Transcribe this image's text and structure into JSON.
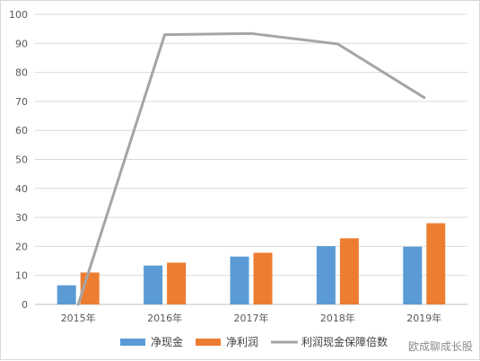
{
  "chart_data": {
    "type": "bar",
    "categories": [
      "2015年",
      "2016年",
      "2017年",
      "2018年",
      "2019年"
    ],
    "series": [
      {
        "name": "净现金",
        "type": "bar",
        "color": "#5b9bd5",
        "values": [
          6.6,
          13.4,
          16.5,
          20.1,
          19.9
        ]
      },
      {
        "name": "净利润",
        "type": "bar",
        "color": "#ed7d31",
        "values": [
          11.0,
          14.4,
          17.8,
          22.8,
          28.0
        ]
      },
      {
        "name": "利润现金保障倍数",
        "type": "line",
        "color": "#a5a5a5",
        "values": [
          0,
          93.0,
          93.4,
          89.8,
          71.3
        ]
      }
    ],
    "ylim": [
      0,
      100
    ],
    "yticks": [
      0,
      10,
      20,
      30,
      40,
      50,
      60,
      70,
      80,
      90,
      100
    ],
    "title": "",
    "xlabel": "",
    "ylabel": "",
    "grid": true,
    "legend_position": "bottom"
  },
  "watermark": "欧成聊成长股"
}
